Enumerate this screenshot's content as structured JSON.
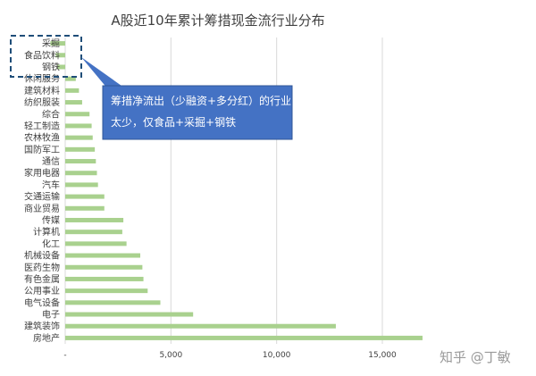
{
  "chart_data": {
    "type": "bar",
    "orientation": "horizontal",
    "title": "A股近10年累计筹措现金流行业分布",
    "categories": [
      "采掘",
      "食品饮料",
      "钢铁",
      "休闲服务",
      "建筑材料",
      "纺织服装",
      "综合",
      "轻工制造",
      "农林牧渔",
      "国防军工",
      "通信",
      "家用电器",
      "汽车",
      "交通运输",
      "商业贸易",
      "传媒",
      "计算机",
      "化工",
      "机械设备",
      "医药生物",
      "有色金属",
      "公用事业",
      "电气设备",
      "电子",
      "建筑装饰",
      "房地产"
    ],
    "values": [
      -700,
      -450,
      -380,
      500,
      650,
      800,
      1150,
      1250,
      1300,
      1400,
      1450,
      1500,
      1550,
      1850,
      1850,
      2750,
      2700,
      2900,
      3550,
      3650,
      3700,
      3900,
      4500,
      6050,
      12800,
      16900
    ],
    "xlim": [
      -1600,
      17000
    ],
    "xticks": [
      0,
      5000,
      10000,
      15000
    ],
    "xtick_labels": [
      "-",
      "5,000",
      "10,000",
      "15,000"
    ],
    "grid": true,
    "bar_color": "#a9d18e"
  },
  "annotation": {
    "lines": [
      "筹措净流出（少融资+多分红）的行业",
      "太少，仅食品+采掘+钢铁"
    ],
    "box_color": "#4472c4",
    "highlight_border_color": "#1f4e79"
  },
  "watermark": "知乎 @丁敏"
}
